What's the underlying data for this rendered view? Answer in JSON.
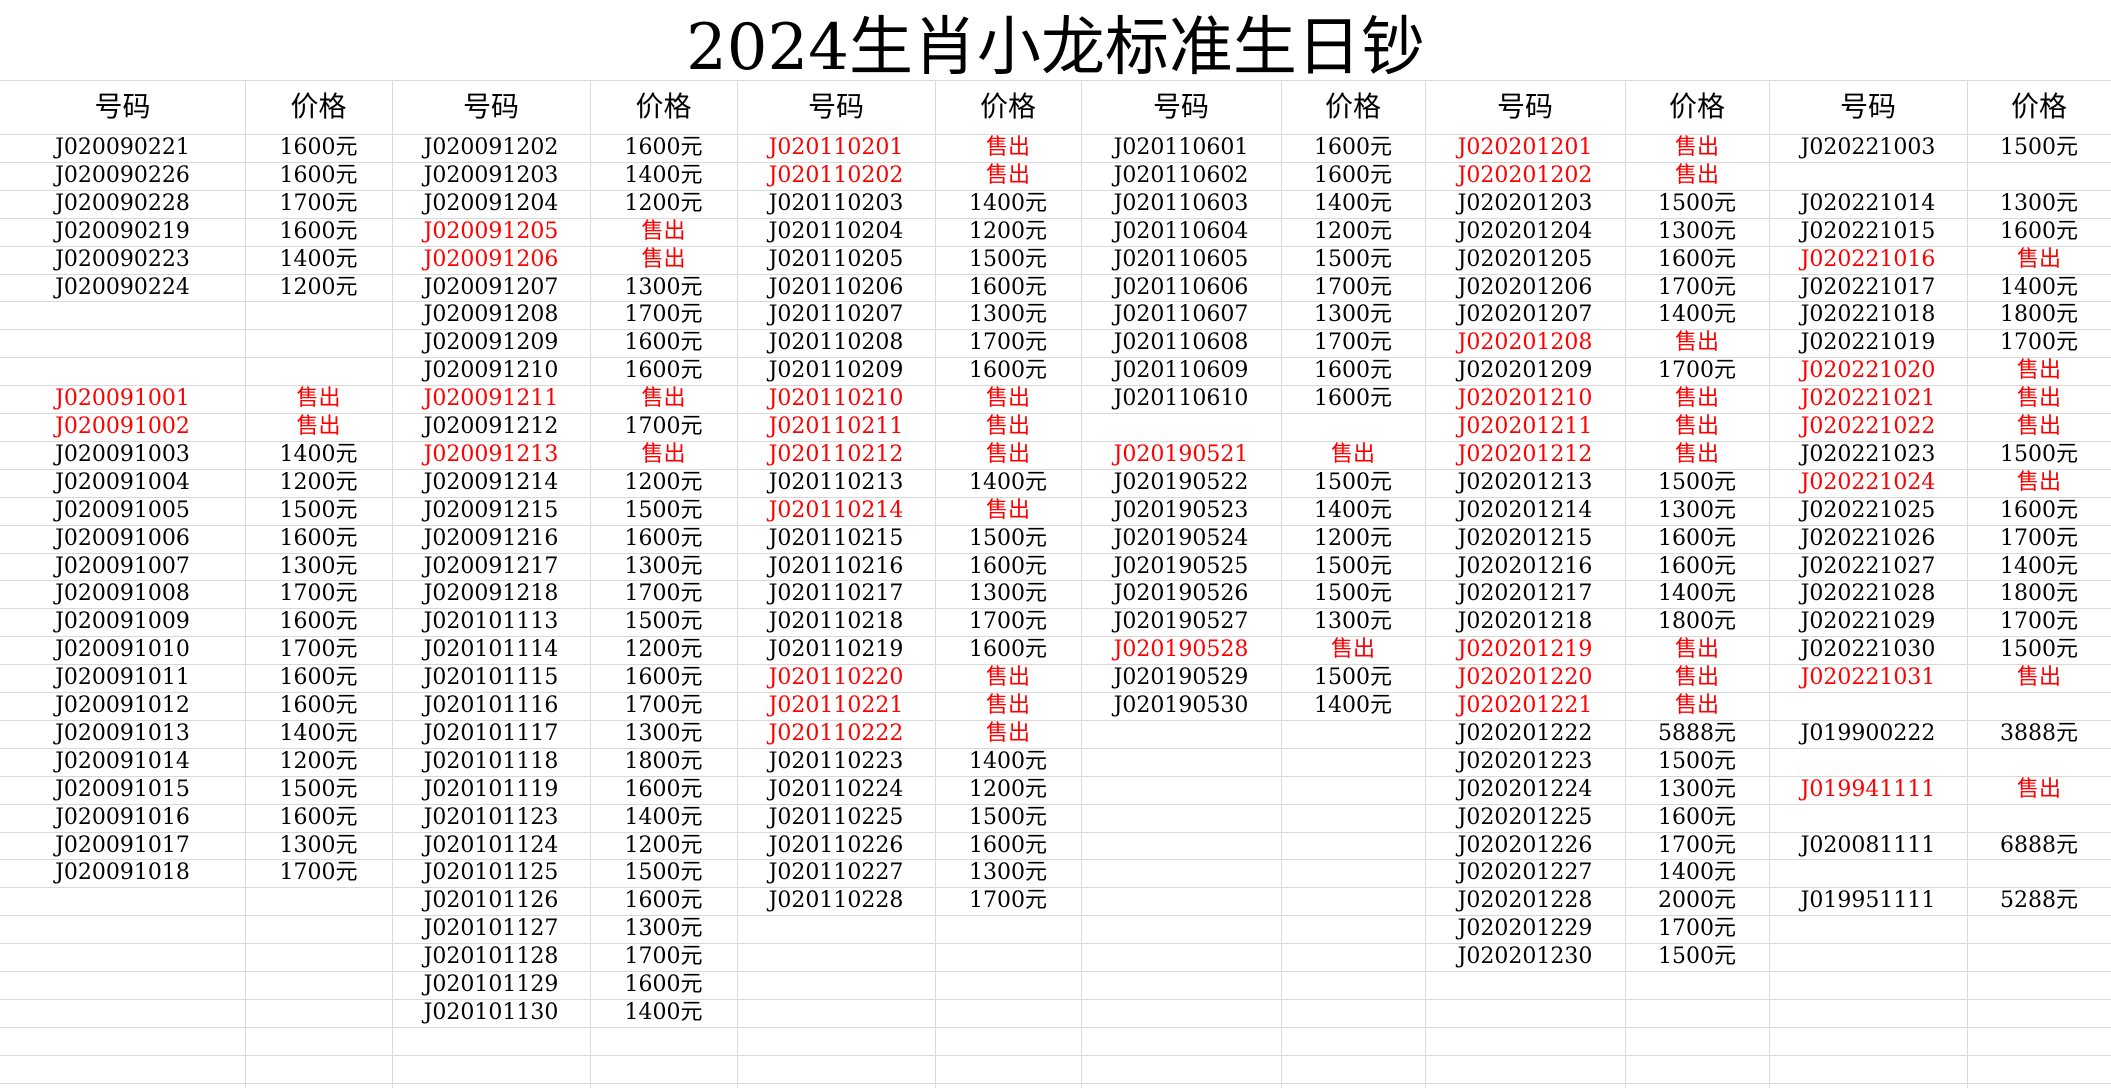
{
  "title": "2024生肖小龙标准生日钞",
  "header": {
    "code": "号码",
    "price": "价格"
  },
  "sold_color": "#ff0000",
  "groups": [
    {
      "rows": [
        [
          "J020090221",
          "1600元"
        ],
        [
          "J020090226",
          "1600元"
        ],
        [
          "J020090228",
          "1700元"
        ],
        [
          "J020090219",
          "1600元"
        ],
        [
          "J020090223",
          "1400元"
        ],
        [
          "J020090224",
          "1200元"
        ],
        null,
        null,
        null,
        [
          "J020091001",
          "售出"
        ],
        [
          "J020091002",
          "售出"
        ],
        [
          "J020091003",
          "1400元"
        ],
        [
          "J020091004",
          "1200元"
        ],
        [
          "J020091005",
          "1500元"
        ],
        [
          "J020091006",
          "1600元"
        ],
        [
          "J020091007",
          "1300元"
        ],
        [
          "J020091008",
          "1700元"
        ],
        [
          "J020091009",
          "1600元"
        ],
        [
          "J020091010",
          "1700元"
        ],
        [
          "J020091011",
          "1600元"
        ],
        [
          "J020091012",
          "1600元"
        ],
        [
          "J020091013",
          "1400元"
        ],
        [
          "J020091014",
          "1200元"
        ],
        [
          "J020091015",
          "1500元"
        ],
        [
          "J020091016",
          "1600元"
        ],
        [
          "J020091017",
          "1300元"
        ],
        [
          "J020091018",
          "1700元"
        ]
      ]
    },
    {
      "rows": [
        [
          "J020091202",
          "1600元"
        ],
        [
          "J020091203",
          "1400元"
        ],
        [
          "J020091204",
          "1200元"
        ],
        [
          "J020091205",
          "售出"
        ],
        [
          "J020091206",
          "售出"
        ],
        [
          "J020091207",
          "1300元"
        ],
        [
          "J020091208",
          "1700元"
        ],
        [
          "J020091209",
          "1600元"
        ],
        [
          "J020091210",
          "1600元"
        ],
        [
          "J020091211",
          "售出"
        ],
        [
          "J020091212",
          "1700元"
        ],
        [
          "J020091213",
          "售出"
        ],
        [
          "J020091214",
          "1200元"
        ],
        [
          "J020091215",
          "1500元"
        ],
        [
          "J020091216",
          "1600元"
        ],
        [
          "J020091217",
          "1300元"
        ],
        [
          "J020091218",
          "1700元"
        ],
        [
          "J020101113",
          "1500元"
        ],
        [
          "J020101114",
          "1200元"
        ],
        [
          "J020101115",
          "1600元"
        ],
        [
          "J020101116",
          "1700元"
        ],
        [
          "J020101117",
          "1300元"
        ],
        [
          "J020101118",
          "1800元"
        ],
        [
          "J020101119",
          "1600元"
        ],
        [
          "J020101123",
          "1400元"
        ],
        [
          "J020101124",
          "1200元"
        ],
        [
          "J020101125",
          "1500元"
        ],
        [
          "J020101126",
          "1600元"
        ],
        [
          "J020101127",
          "1300元"
        ],
        [
          "J020101128",
          "1700元"
        ],
        [
          "J020101129",
          "1600元"
        ],
        [
          "J020101130",
          "1400元"
        ]
      ]
    },
    {
      "rows": [
        [
          "J020110201",
          "售出"
        ],
        [
          "J020110202",
          "售出"
        ],
        [
          "J020110203",
          "1400元"
        ],
        [
          "J020110204",
          "1200元"
        ],
        [
          "J020110205",
          "1500元"
        ],
        [
          "J020110206",
          "1600元"
        ],
        [
          "J020110207",
          "1300元"
        ],
        [
          "J020110208",
          "1700元"
        ],
        [
          "J020110209",
          "1600元"
        ],
        [
          "J020110210",
          "售出"
        ],
        [
          "J020110211",
          "售出"
        ],
        [
          "J020110212",
          "售出"
        ],
        [
          "J020110213",
          "1400元"
        ],
        [
          "J020110214",
          "售出"
        ],
        [
          "J020110215",
          "1500元"
        ],
        [
          "J020110216",
          "1600元"
        ],
        [
          "J020110217",
          "1300元"
        ],
        [
          "J020110218",
          "1700元"
        ],
        [
          "J020110219",
          "1600元"
        ],
        [
          "J020110220",
          "售出"
        ],
        [
          "J020110221",
          "售出"
        ],
        [
          "J020110222",
          "售出"
        ],
        [
          "J020110223",
          "1400元"
        ],
        [
          "J020110224",
          "1200元"
        ],
        [
          "J020110225",
          "1500元"
        ],
        [
          "J020110226",
          "1600元"
        ],
        [
          "J020110227",
          "1300元"
        ],
        [
          "J020110228",
          "1700元"
        ]
      ]
    },
    {
      "rows": [
        [
          "J020110601",
          "1600元"
        ],
        [
          "J020110602",
          "1600元"
        ],
        [
          "J020110603",
          "1400元"
        ],
        [
          "J020110604",
          "1200元"
        ],
        [
          "J020110605",
          "1500元"
        ],
        [
          "J020110606",
          "1700元"
        ],
        [
          "J020110607",
          "1300元"
        ],
        [
          "J020110608",
          "1700元"
        ],
        [
          "J020110609",
          "1600元"
        ],
        [
          "J020110610",
          "1600元"
        ],
        null,
        [
          "J020190521",
          "售出"
        ],
        [
          "J020190522",
          "1500元"
        ],
        [
          "J020190523",
          "1400元"
        ],
        [
          "J020190524",
          "1200元"
        ],
        [
          "J020190525",
          "1500元"
        ],
        [
          "J020190526",
          "1500元"
        ],
        [
          "J020190527",
          "1300元"
        ],
        [
          "J020190528",
          "售出"
        ],
        [
          "J020190529",
          "1500元"
        ],
        [
          "J020190530",
          "1400元"
        ]
      ]
    },
    {
      "rows": [
        [
          "J020201201",
          "售出"
        ],
        [
          "J020201202",
          "售出"
        ],
        [
          "J020201203",
          "1500元"
        ],
        [
          "J020201204",
          "1300元"
        ],
        [
          "J020201205",
          "1600元"
        ],
        [
          "J020201206",
          "1700元"
        ],
        [
          "J020201207",
          "1400元"
        ],
        [
          "J020201208",
          "售出"
        ],
        [
          "J020201209",
          "1700元"
        ],
        [
          "J020201210",
          "售出"
        ],
        [
          "J020201211",
          "售出"
        ],
        [
          "J020201212",
          "售出"
        ],
        [
          "J020201213",
          "1500元"
        ],
        [
          "J020201214",
          "1300元"
        ],
        [
          "J020201215",
          "1600元"
        ],
        [
          "J020201216",
          "1600元"
        ],
        [
          "J020201217",
          "1400元"
        ],
        [
          "J020201218",
          "1800元"
        ],
        [
          "J020201219",
          "售出"
        ],
        [
          "J020201220",
          "售出"
        ],
        [
          "J020201221",
          "售出"
        ],
        [
          "J020201222",
          "5888元"
        ],
        [
          "J020201223",
          "1500元"
        ],
        [
          "J020201224",
          "1300元"
        ],
        [
          "J020201225",
          "1600元"
        ],
        [
          "J020201226",
          "1700元"
        ],
        [
          "J020201227",
          "1400元"
        ],
        [
          "J020201228",
          "2000元"
        ],
        [
          "J020201229",
          "1700元"
        ],
        [
          "J020201230",
          "1500元"
        ]
      ]
    },
    {
      "rows": [
        [
          "J020221003",
          "1500元"
        ],
        null,
        [
          "J020221014",
          "1300元"
        ],
        [
          "J020221015",
          "1600元"
        ],
        [
          "J020221016",
          "售出"
        ],
        [
          "J020221017",
          "1400元"
        ],
        [
          "J020221018",
          "1800元"
        ],
        [
          "J020221019",
          "1700元"
        ],
        [
          "J020221020",
          "售出"
        ],
        [
          "J020221021",
          "售出"
        ],
        [
          "J020221022",
          "售出"
        ],
        [
          "J020221023",
          "1500元"
        ],
        [
          "J020221024",
          "售出"
        ],
        [
          "J020221025",
          "1600元"
        ],
        [
          "J020221026",
          "1700元"
        ],
        [
          "J020221027",
          "1400元"
        ],
        [
          "J020221028",
          "1800元"
        ],
        [
          "J020221029",
          "1700元"
        ],
        [
          "J020221030",
          "1500元"
        ],
        [
          "J020221031",
          "售出"
        ],
        null,
        [
          "J019900222",
          "3888元"
        ],
        null,
        [
          "J019941111",
          "售出"
        ],
        null,
        [
          "J020081111",
          "6888元"
        ],
        null,
        [
          "J019951111",
          "5288元"
        ]
      ]
    }
  ]
}
